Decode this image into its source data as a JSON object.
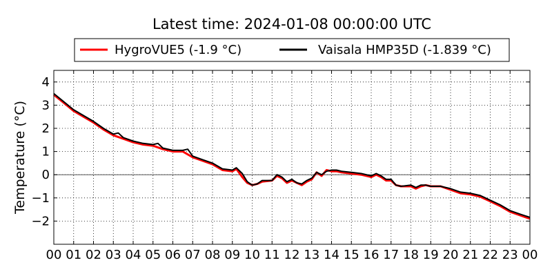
{
  "chart_data": {
    "type": "line",
    "title": "Latest time: 2024-01-08 00:00:00 UTC",
    "xlabel": "",
    "ylabel": "Temperature (°C)",
    "xlim": [
      0,
      24
    ],
    "ylim": [
      -3,
      4.5
    ],
    "x_ticks": [
      0,
      1,
      2,
      3,
      4,
      5,
      6,
      7,
      8,
      9,
      10,
      11,
      12,
      13,
      14,
      15,
      16,
      17,
      18,
      19,
      20,
      21,
      22,
      23,
      24
    ],
    "x_tick_labels": [
      "00",
      "01",
      "02",
      "03",
      "04",
      "05",
      "06",
      "07",
      "08",
      "09",
      "10",
      "11",
      "12",
      "13",
      "14",
      "15",
      "16",
      "17",
      "18",
      "19",
      "20",
      "21",
      "22",
      "23",
      "00"
    ],
    "y_ticks": [
      -2,
      -1,
      0,
      1,
      2,
      3,
      4
    ],
    "y_tick_labels": [
      "−2",
      "−1",
      "0",
      "1",
      "2",
      "3",
      "4"
    ],
    "grid": true,
    "zero_line": true,
    "legend_position": "top-center, above plot",
    "series": [
      {
        "name": "HygroVUE5 (-1.9 °C)",
        "color": "#ff0000",
        "x": [
          0,
          0.5,
          1,
          1.5,
          2,
          2.5,
          3,
          3.5,
          4,
          4.5,
          5,
          5.5,
          6,
          6.5,
          7,
          7.5,
          8,
          8.5,
          9,
          9.2,
          9.5,
          9.75,
          10,
          10.25,
          10.5,
          11,
          11.25,
          11.5,
          11.75,
          12,
          12.25,
          12.5,
          12.75,
          13,
          13.25,
          13.5,
          13.75,
          14,
          14.25,
          14.5,
          15,
          15.5,
          16,
          16.25,
          16.5,
          16.75,
          17,
          17.25,
          17.5,
          18,
          18.25,
          18.5,
          18.75,
          19,
          19.5,
          20,
          20.5,
          21,
          21.5,
          22,
          22.5,
          23,
          23.5,
          24
        ],
        "values": [
          3.45,
          3.1,
          2.75,
          2.5,
          2.25,
          1.95,
          1.7,
          1.55,
          1.4,
          1.3,
          1.25,
          1.1,
          1.0,
          1.0,
          0.75,
          0.6,
          0.45,
          0.2,
          0.15,
          0.25,
          -0.1,
          -0.35,
          -0.45,
          -0.4,
          -0.3,
          -0.25,
          -0.05,
          -0.15,
          -0.35,
          -0.25,
          -0.35,
          -0.45,
          -0.3,
          -0.2,
          0.1,
          -0.05,
          0.2,
          0.15,
          0.15,
          0.1,
          0.05,
          0.0,
          -0.1,
          0.0,
          -0.1,
          -0.25,
          -0.25,
          -0.45,
          -0.5,
          -0.5,
          -0.6,
          -0.5,
          -0.45,
          -0.5,
          -0.5,
          -0.65,
          -0.8,
          -0.85,
          -0.95,
          -1.15,
          -1.35,
          -1.6,
          -1.75,
          -1.9
        ]
      },
      {
        "name": "Vaisala HMP35D (-1.839 °C)",
        "color": "#000000",
        "x": [
          0,
          0.5,
          1,
          1.5,
          2,
          2.5,
          3,
          3.25,
          3.5,
          4,
          4.5,
          5,
          5.25,
          5.5,
          6,
          6.5,
          6.75,
          7,
          7.5,
          8,
          8.5,
          9,
          9.2,
          9.5,
          9.75,
          10,
          10.25,
          10.5,
          11,
          11.25,
          11.5,
          11.75,
          12,
          12.25,
          12.5,
          12.75,
          13,
          13.25,
          13.5,
          13.75,
          14,
          14.25,
          14.5,
          15,
          15.5,
          16,
          16.25,
          16.5,
          16.75,
          17,
          17.25,
          17.5,
          18,
          18.25,
          18.5,
          18.75,
          19,
          19.5,
          20,
          20.5,
          21,
          21.5,
          22,
          22.5,
          23,
          23.5,
          24
        ],
        "values": [
          3.5,
          3.15,
          2.8,
          2.55,
          2.3,
          2.0,
          1.75,
          1.8,
          1.6,
          1.45,
          1.35,
          1.3,
          1.35,
          1.15,
          1.05,
          1.05,
          1.1,
          0.8,
          0.65,
          0.5,
          0.25,
          0.2,
          0.3,
          0.05,
          -0.3,
          -0.45,
          -0.4,
          -0.25,
          -0.25,
          0.0,
          -0.1,
          -0.3,
          -0.2,
          -0.35,
          -0.4,
          -0.25,
          -0.15,
          0.1,
          0.0,
          0.15,
          0.2,
          0.2,
          0.15,
          0.1,
          0.05,
          -0.05,
          0.05,
          -0.05,
          -0.2,
          -0.2,
          -0.45,
          -0.5,
          -0.45,
          -0.55,
          -0.45,
          -0.45,
          -0.5,
          -0.5,
          -0.6,
          -0.75,
          -0.8,
          -0.9,
          -1.1,
          -1.3,
          -1.55,
          -1.7,
          -1.84
        ]
      }
    ]
  }
}
